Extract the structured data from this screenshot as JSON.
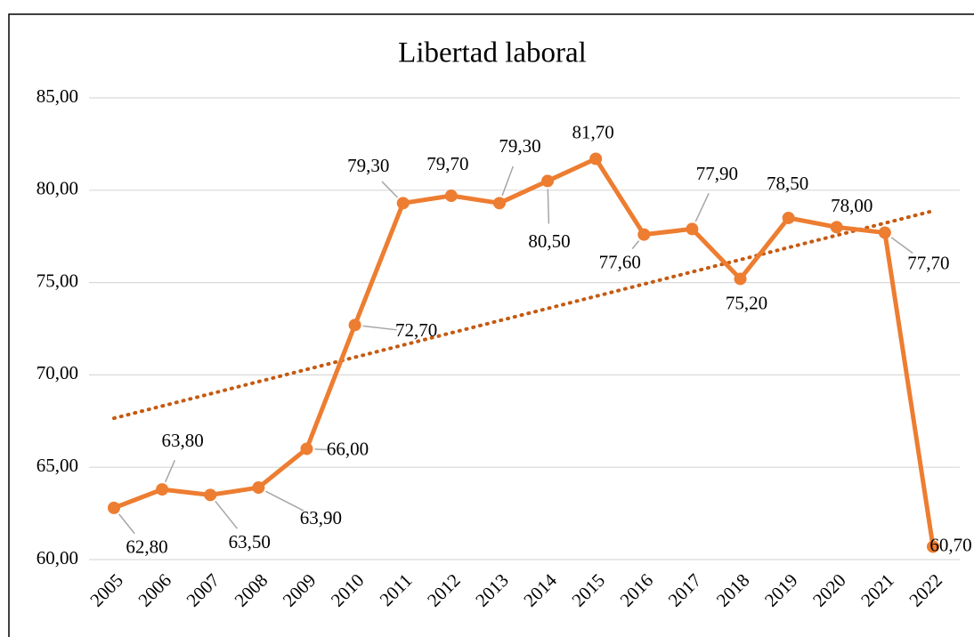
{
  "chart_data": {
    "type": "line",
    "title": "Libertad laboral",
    "categories": [
      "2005",
      "2006",
      "2007",
      "2008",
      "2009",
      "2010",
      "2011",
      "2012",
      "2013",
      "2014",
      "2015",
      "2016",
      "2017",
      "2018",
      "2019",
      "2020",
      "2021",
      "2022"
    ],
    "series": [
      {
        "name": "Libertad laboral",
        "color": "#ed7d31",
        "values": [
          62.8,
          63.8,
          63.5,
          63.9,
          66.0,
          72.7,
          79.3,
          79.7,
          79.3,
          80.5,
          81.7,
          77.6,
          77.9,
          75.2,
          78.5,
          78.0,
          77.7,
          60.7
        ],
        "value_labels": [
          "62,80",
          "63,80",
          "63,50",
          "63,90",
          "66,00",
          "72,70",
          "79,30",
          "79,70",
          "79,30",
          "80,50",
          "81,70",
          "77,60",
          "77,90",
          "75,20",
          "78,50",
          "78,00",
          "77,70",
          "60,70"
        ]
      }
    ],
    "trendline": {
      "type": "linear",
      "color": "#c55a11"
    },
    "ylim": [
      60,
      85
    ],
    "yticks": [
      {
        "value": 60,
        "label": "60,00"
      },
      {
        "value": 65,
        "label": "65,00"
      },
      {
        "value": 70,
        "label": "70,00"
      },
      {
        "value": 75,
        "label": "75,00"
      },
      {
        "value": 80,
        "label": "80,00"
      },
      {
        "value": 85,
        "label": "85,00"
      }
    ],
    "grid": true
  }
}
